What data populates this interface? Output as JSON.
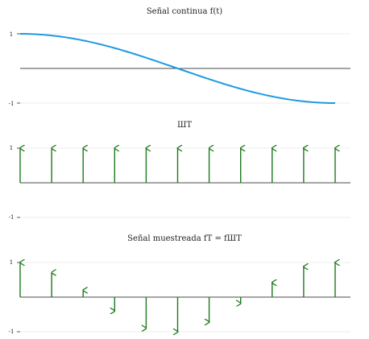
{
  "chart_data": [
    {
      "type": "line",
      "title": "Señal continua f(t)",
      "ylim": [
        -1,
        1
      ],
      "yticks": [
        "1",
        "-1"
      ],
      "grid": true,
      "line_color": "#1e9ae0",
      "x": [
        0,
        0.5,
        1,
        1.5,
        2,
        2.5,
        3,
        3.5,
        4,
        4.5,
        5,
        5.5,
        6,
        6.5,
        7,
        7.5,
        8,
        8.5,
        9,
        9.5,
        10
      ],
      "y": [
        1.0,
        0.988,
        0.951,
        0.891,
        0.809,
        0.707,
        0.588,
        0.454,
        0.309,
        0.156,
        0.0,
        -0.156,
        -0.309,
        -0.454,
        -0.588,
        -0.707,
        -0.809,
        -0.891,
        -0.951,
        -0.988,
        -1.0
      ]
    },
    {
      "type": "stem",
      "title": "ШT",
      "ylim": [
        -1,
        1
      ],
      "yticks": [
        "1",
        "-1"
      ],
      "grid": true,
      "stem_color": "#1b7a1b",
      "x": [
        0,
        1,
        2,
        3,
        4,
        5,
        6,
        7,
        8,
        9,
        10
      ],
      "y": [
        1,
        1,
        1,
        1,
        1,
        1,
        1,
        1,
        1,
        1,
        1
      ]
    },
    {
      "type": "stem",
      "title": "Señal muestreada fT = fШT",
      "ylim": [
        -1,
        1
      ],
      "yticks": [
        "1",
        "-1"
      ],
      "grid": true,
      "stem_color": "#1b7a1b",
      "x": [
        0,
        1,
        2,
        3,
        4,
        5,
        6,
        7,
        8,
        9,
        10
      ],
      "y": [
        1.0,
        0.71,
        0.2,
        -0.4,
        -0.9,
        -1.0,
        -0.72,
        -0.18,
        0.42,
        0.88,
        1.0
      ]
    }
  ]
}
